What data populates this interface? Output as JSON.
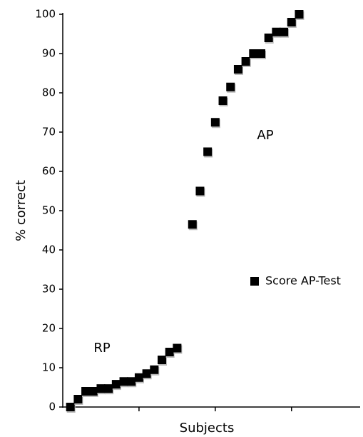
{
  "chart_data": {
    "type": "scatter",
    "y_label": "% correct",
    "x_label": "Subjects",
    "annotations": [
      "AP",
      "RP"
    ],
    "series": [
      {
        "name": "Score AP-Test",
        "color": "#000000",
        "x": [
          1,
          2,
          3,
          4,
          5,
          6,
          7,
          8,
          9,
          10,
          11,
          12,
          13,
          14,
          15,
          17,
          18,
          19,
          20,
          21,
          22,
          23,
          24,
          25,
          26,
          27,
          28,
          29,
          30,
          31
        ],
        "values": [
          0,
          2,
          4,
          4,
          4.7,
          4.7,
          5.8,
          6.5,
          6.5,
          7.5,
          8.5,
          9.5,
          12,
          14,
          15,
          46.5,
          55,
          65,
          72.5,
          78,
          81.5,
          86,
          88,
          90,
          90,
          94,
          95.5,
          95.5,
          98,
          100
        ]
      }
    ],
    "xlim": [
      0,
      39
    ],
    "xticks": [
      10,
      20,
      30
    ],
    "ylim": [
      0,
      100
    ],
    "yticks": [
      0,
      10,
      20,
      30,
      40,
      50,
      60,
      70,
      80,
      90,
      100
    ],
    "legend": "right"
  }
}
